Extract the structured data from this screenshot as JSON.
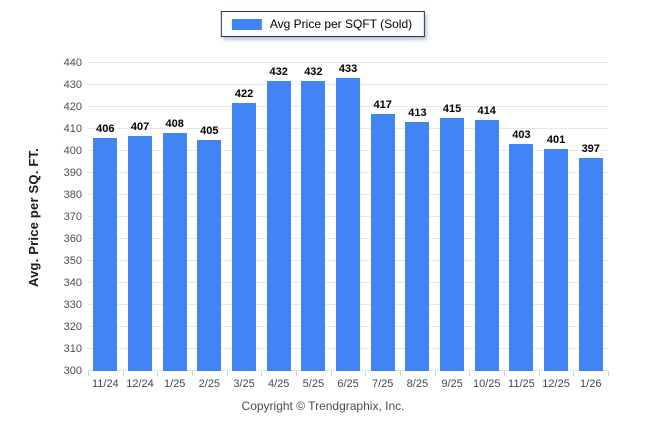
{
  "legend": {
    "label": "Avg Price per SQFT (Sold)",
    "swatch_color": "#4184f3"
  },
  "footer": {
    "text": "Copyright © Trendgraphix, Inc."
  },
  "colors": {
    "bar": "#4184f3",
    "gridline": "#e8e8e8",
    "tick": "#cfcfcf",
    "axis_text": "#4d4d4d",
    "xlabel_text": "#3d4a5c",
    "value_text": "#000000",
    "legend_border": "#17365d",
    "background": "#ffffff"
  },
  "chart_data": {
    "type": "bar",
    "title": "",
    "xlabel": "",
    "ylabel": "Avg. Price per SQ. FT.",
    "categories": [
      "11/24",
      "12/24",
      "1/25",
      "2/25",
      "3/25",
      "4/25",
      "5/25",
      "6/25",
      "7/25",
      "8/25",
      "9/25",
      "10/25",
      "11/25",
      "12/25",
      "1/26"
    ],
    "series": [
      {
        "name": "Avg Price per SQFT (Sold)",
        "values": [
          406,
          407,
          408,
          405,
          422,
          432,
          432,
          433,
          417,
          413,
          415,
          414,
          403,
          401,
          397
        ]
      }
    ],
    "ylim": [
      300,
      440
    ],
    "ytick_step": 10,
    "grid": "horizontal",
    "legend_position": "top-center",
    "bar_labels": true
  }
}
